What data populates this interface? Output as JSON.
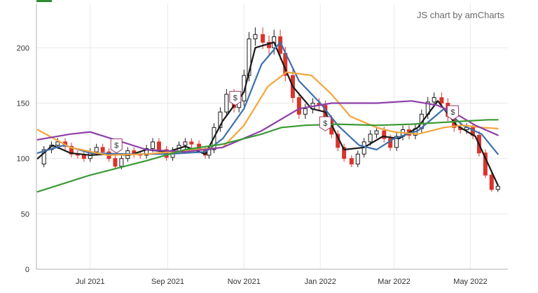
{
  "credit": "JS chart by amCharts",
  "colors": {
    "candle_up": "#1a1a1a",
    "candle_down": "#d9342b",
    "grid": "#e9e9e9",
    "axis": "#b0b0b0",
    "legend_swatch": "#2e8b2e"
  },
  "chart_data": {
    "type": "line",
    "subtype": "candlestick with moving averages",
    "title": "",
    "xlabel": "",
    "ylabel": "",
    "ylim": [
      0,
      240
    ],
    "grid": true,
    "x_range": [
      "2021-05-19",
      "2022-05-31"
    ],
    "y_ticks": [
      "0",
      "50",
      "100",
      "150",
      "200"
    ],
    "x_ticks": [
      {
        "date": "2021-07-01",
        "label": "Jul 2021"
      },
      {
        "date": "2021-09-01",
        "label": "Sep 2021"
      },
      {
        "date": "2021-11-01",
        "label": "Nov 2021"
      },
      {
        "date": "2022-01-01",
        "label": "Jan 2022"
      },
      {
        "date": "2022-03-01",
        "label": "Mar 2022"
      },
      {
        "date": "2022-05-01",
        "label": "May 2022"
      }
    ],
    "close_series": [
      [
        "2021-05-20",
        95
      ],
      [
        "2021-05-25",
        108
      ],
      [
        "2021-05-31",
        112
      ],
      [
        "2021-06-05",
        115
      ],
      [
        "2021-06-11",
        111
      ],
      [
        "2021-06-16",
        104
      ],
      [
        "2021-06-21",
        103
      ],
      [
        "2021-06-26",
        100
      ],
      [
        "2021-07-01",
        106
      ],
      [
        "2021-07-06",
        110
      ],
      [
        "2021-07-11",
        106
      ],
      [
        "2021-07-16",
        100
      ],
      [
        "2021-07-21",
        93
      ],
      [
        "2021-07-26",
        100
      ],
      [
        "2021-07-31",
        107
      ],
      [
        "2021-08-05",
        104
      ],
      [
        "2021-08-10",
        103
      ],
      [
        "2021-08-15",
        109
      ],
      [
        "2021-08-20",
        115
      ],
      [
        "2021-08-25",
        108
      ],
      [
        "2021-08-31",
        101
      ],
      [
        "2021-09-05",
        107
      ],
      [
        "2021-09-10",
        112
      ],
      [
        "2021-09-15",
        115
      ],
      [
        "2021-09-20",
        113
      ],
      [
        "2021-09-26",
        108
      ],
      [
        "2021-10-01",
        103
      ],
      [
        "2021-10-04",
        108
      ],
      [
        "2021-10-08",
        128
      ],
      [
        "2021-10-13",
        142
      ],
      [
        "2021-10-18",
        158
      ],
      [
        "2021-10-24",
        146
      ],
      [
        "2021-10-28",
        152
      ],
      [
        "2021-11-01",
        175
      ],
      [
        "2021-11-05",
        208
      ],
      [
        "2021-11-10",
        212
      ],
      [
        "2021-11-16",
        205
      ],
      [
        "2021-11-21",
        200
      ],
      [
        "2021-11-25",
        210
      ],
      [
        "2021-11-30",
        195
      ],
      [
        "2021-12-04",
        175
      ],
      [
        "2021-12-10",
        155
      ],
      [
        "2021-12-15",
        140
      ],
      [
        "2021-12-20",
        145
      ],
      [
        "2021-12-26",
        150
      ],
      [
        "2021-12-31",
        148
      ],
      [
        "2022-01-05",
        135
      ],
      [
        "2022-01-10",
        122
      ],
      [
        "2022-01-15",
        110
      ],
      [
        "2022-01-20",
        100
      ],
      [
        "2022-01-26",
        95
      ],
      [
        "2022-01-31",
        104
      ],
      [
        "2022-02-05",
        115
      ],
      [
        "2022-02-10",
        122
      ],
      [
        "2022-02-15",
        125
      ],
      [
        "2022-02-21",
        118
      ],
      [
        "2022-02-26",
        110
      ],
      [
        "2022-03-03",
        120
      ],
      [
        "2022-03-08",
        126
      ],
      [
        "2022-03-13",
        121
      ],
      [
        "2022-03-18",
        127
      ],
      [
        "2022-03-23",
        140
      ],
      [
        "2022-03-28",
        151
      ],
      [
        "2022-04-02",
        155
      ],
      [
        "2022-04-08",
        150
      ],
      [
        "2022-04-13",
        138
      ],
      [
        "2022-04-18",
        128
      ],
      [
        "2022-04-23",
        126
      ],
      [
        "2022-04-28",
        128
      ],
      [
        "2022-05-03",
        121
      ],
      [
        "2022-05-08",
        105
      ],
      [
        "2022-05-13",
        85
      ],
      [
        "2022-05-18",
        72
      ],
      [
        "2022-05-23",
        75
      ]
    ],
    "series": [
      {
        "type": "line",
        "color": "#1a1a1a",
        "points": [
          [
            "2021-05-20",
            100
          ],
          [
            "2021-06-01",
            112
          ],
          [
            "2021-06-15",
            105
          ],
          [
            "2021-07-01",
            103
          ],
          [
            "2021-07-15",
            104
          ],
          [
            "2021-08-01",
            103
          ],
          [
            "2021-08-15",
            108
          ],
          [
            "2021-09-01",
            106
          ],
          [
            "2021-09-15",
            111
          ],
          [
            "2021-10-01",
            104
          ],
          [
            "2021-10-15",
            134
          ],
          [
            "2021-11-01",
            160
          ],
          [
            "2021-11-10",
            200
          ],
          [
            "2021-11-25",
            205
          ],
          [
            "2021-12-10",
            165
          ],
          [
            "2021-12-25",
            145
          ],
          [
            "2022-01-05",
            142
          ],
          [
            "2022-01-20",
            108
          ],
          [
            "2022-02-05",
            110
          ],
          [
            "2022-02-20",
            120
          ],
          [
            "2022-03-05",
            118
          ],
          [
            "2022-03-20",
            128
          ],
          [
            "2022-04-05",
            152
          ],
          [
            "2022-04-20",
            130
          ],
          [
            "2022-05-05",
            120
          ],
          [
            "2022-05-23",
            76
          ]
        ]
      },
      {
        "type": "line",
        "color": "#3c6fae",
        "points": [
          [
            "2021-05-20",
            105
          ],
          [
            "2021-06-10",
            112
          ],
          [
            "2021-07-01",
            105
          ],
          [
            "2021-08-01",
            104
          ],
          [
            "2021-09-01",
            104
          ],
          [
            "2021-10-01",
            106
          ],
          [
            "2021-10-15",
            118
          ],
          [
            "2021-11-01",
            145
          ],
          [
            "2021-11-15",
            185
          ],
          [
            "2021-11-30",
            205
          ],
          [
            "2021-12-15",
            170
          ],
          [
            "2022-01-01",
            150
          ],
          [
            "2022-01-15",
            130
          ],
          [
            "2022-02-01",
            112
          ],
          [
            "2022-02-15",
            108
          ],
          [
            "2022-03-01",
            118
          ],
          [
            "2022-03-20",
            125
          ],
          [
            "2022-04-10",
            145
          ],
          [
            "2022-04-25",
            130
          ],
          [
            "2022-05-10",
            122
          ],
          [
            "2022-05-23",
            104
          ]
        ]
      },
      {
        "type": "line",
        "color": "#f4a53c",
        "points": [
          [
            "2021-05-20",
            126
          ],
          [
            "2021-06-15",
            110
          ],
          [
            "2021-07-15",
            103
          ],
          [
            "2021-08-15",
            104
          ],
          [
            "2021-09-15",
            107
          ],
          [
            "2021-10-15",
            110
          ],
          [
            "2021-11-01",
            130
          ],
          [
            "2021-11-20",
            165
          ],
          [
            "2021-12-05",
            178
          ],
          [
            "2021-12-25",
            175
          ],
          [
            "2022-01-10",
            158
          ],
          [
            "2022-01-25",
            138
          ],
          [
            "2022-02-15",
            128
          ],
          [
            "2022-03-01",
            124
          ],
          [
            "2022-03-20",
            122
          ],
          [
            "2022-04-10",
            128
          ],
          [
            "2022-04-25",
            130
          ],
          [
            "2022-05-10",
            128
          ],
          [
            "2022-05-23",
            127
          ]
        ]
      },
      {
        "type": "line",
        "color": "#8e3fa8",
        "points": [
          [
            "2021-05-20",
            117
          ],
          [
            "2021-06-15",
            122
          ],
          [
            "2021-07-01",
            124
          ],
          [
            "2021-07-15",
            119
          ],
          [
            "2021-08-15",
            108
          ],
          [
            "2021-09-15",
            106
          ],
          [
            "2021-10-15",
            110
          ],
          [
            "2021-11-15",
            125
          ],
          [
            "2021-12-15",
            145
          ],
          [
            "2022-01-10",
            150
          ],
          [
            "2022-02-15",
            150
          ],
          [
            "2022-03-15",
            152
          ],
          [
            "2022-04-05",
            148
          ],
          [
            "2022-04-20",
            140
          ],
          [
            "2022-05-05",
            130
          ],
          [
            "2022-05-23",
            121
          ]
        ]
      },
      {
        "type": "line",
        "color": "#3a9a34",
        "points": [
          [
            "2021-05-20",
            70
          ],
          [
            "2021-07-01",
            85
          ],
          [
            "2021-08-15",
            98
          ],
          [
            "2021-09-15",
            108
          ],
          [
            "2021-10-15",
            113
          ],
          [
            "2021-11-15",
            122
          ],
          [
            "2021-12-01",
            128
          ],
          [
            "2021-12-20",
            130
          ],
          [
            "2022-01-15",
            131
          ],
          [
            "2022-02-15",
            130
          ],
          [
            "2022-03-15",
            131
          ],
          [
            "2022-04-15",
            133
          ],
          [
            "2022-05-15",
            135
          ],
          [
            "2022-05-23",
            135
          ]
        ]
      }
    ],
    "annotations": [
      {
        "date": "2021-07-22",
        "y": 112,
        "label": "$"
      },
      {
        "date": "2021-10-25",
        "y": 155,
        "label": "$"
      },
      {
        "date": "2022-01-05",
        "y": 132,
        "label": "$"
      },
      {
        "date": "2022-04-17",
        "y": 142,
        "label": "$"
      }
    ]
  }
}
